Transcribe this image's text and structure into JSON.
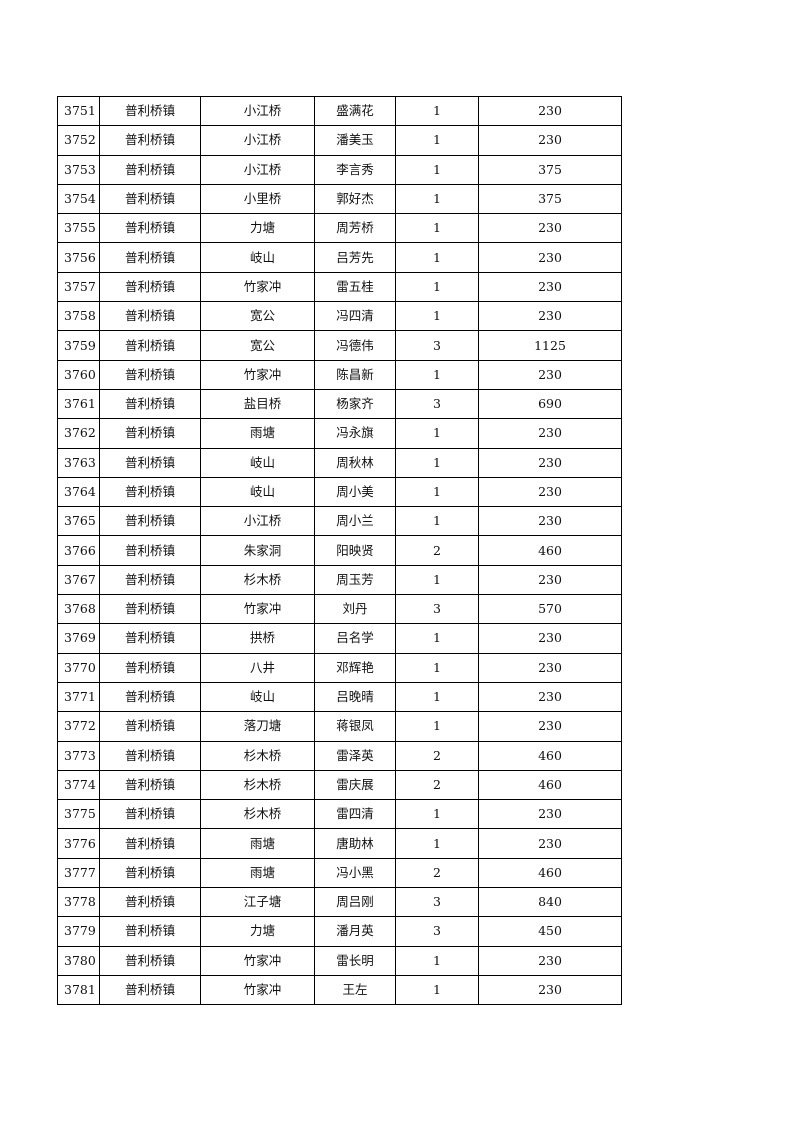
{
  "rows": [
    [
      "3751",
      "普利桥镇",
      "小江桥",
      "盛满花",
      "1",
      "230"
    ],
    [
      "3752",
      "普利桥镇",
      "小江桥",
      "潘美玉",
      "1",
      "230"
    ],
    [
      "3753",
      "普利桥镇",
      "小江桥",
      "李言秀",
      "1",
      "375"
    ],
    [
      "3754",
      "普利桥镇",
      "小里桥",
      "郭好杰",
      "1",
      "375"
    ],
    [
      "3755",
      "普利桥镇",
      "力塘",
      "周芳桥",
      "1",
      "230"
    ],
    [
      "3756",
      "普利桥镇",
      "岐山",
      "吕芳先",
      "1",
      "230"
    ],
    [
      "3757",
      "普利桥镇",
      "竹家冲",
      "雷五桂",
      "1",
      "230"
    ],
    [
      "3758",
      "普利桥镇",
      "宽公",
      "冯四清",
      "1",
      "230"
    ],
    [
      "3759",
      "普利桥镇",
      "宽公",
      "冯德伟",
      "3",
      "1125"
    ],
    [
      "3760",
      "普利桥镇",
      "竹家冲",
      "陈昌新",
      "1",
      "230"
    ],
    [
      "3761",
      "普利桥镇",
      "盐目桥",
      "杨家齐",
      "3",
      "690"
    ],
    [
      "3762",
      "普利桥镇",
      "雨塘",
      "冯永旗",
      "1",
      "230"
    ],
    [
      "3763",
      "普利桥镇",
      "岐山",
      "周秋林",
      "1",
      "230"
    ],
    [
      "3764",
      "普利桥镇",
      "岐山",
      "周小美",
      "1",
      "230"
    ],
    [
      "3765",
      "普利桥镇",
      "小江桥",
      "周小兰",
      "1",
      "230"
    ],
    [
      "3766",
      "普利桥镇",
      "朱家洞",
      "阳映贤",
      "2",
      "460"
    ],
    [
      "3767",
      "普利桥镇",
      "杉木桥",
      "周玉芳",
      "1",
      "230"
    ],
    [
      "3768",
      "普利桥镇",
      "竹家冲",
      "刘丹",
      "3",
      "570"
    ],
    [
      "3769",
      "普利桥镇",
      "拱桥",
      "吕名学",
      "1",
      "230"
    ],
    [
      "3770",
      "普利桥镇",
      "八井",
      "邓辉艳",
      "1",
      "230"
    ],
    [
      "3771",
      "普利桥镇",
      "岐山",
      "吕晚晴",
      "1",
      "230"
    ],
    [
      "3772",
      "普利桥镇",
      "落刀塘",
      "蒋银凤",
      "1",
      "230"
    ],
    [
      "3773",
      "普利桥镇",
      "杉木桥",
      "雷泽英",
      "2",
      "460"
    ],
    [
      "3774",
      "普利桥镇",
      "杉木桥",
      "雷庆展",
      "2",
      "460"
    ],
    [
      "3775",
      "普利桥镇",
      "杉木桥",
      "雷四清",
      "1",
      "230"
    ],
    [
      "3776",
      "普利桥镇",
      "雨塘",
      "唐助林",
      "1",
      "230"
    ],
    [
      "3777",
      "普利桥镇",
      "雨塘",
      "冯小黑",
      "2",
      "460"
    ],
    [
      "3778",
      "普利桥镇",
      "江子塘",
      "周吕刚",
      "3",
      "840"
    ],
    [
      "3779",
      "普利桥镇",
      "力塘",
      "潘月英",
      "3",
      "450"
    ],
    [
      "3780",
      "普利桥镇",
      "竹家冲",
      "雷长明",
      "1",
      "230"
    ],
    [
      "3781",
      "普利桥镇",
      "竹家冲",
      "王左",
      "1",
      "230"
    ]
  ]
}
